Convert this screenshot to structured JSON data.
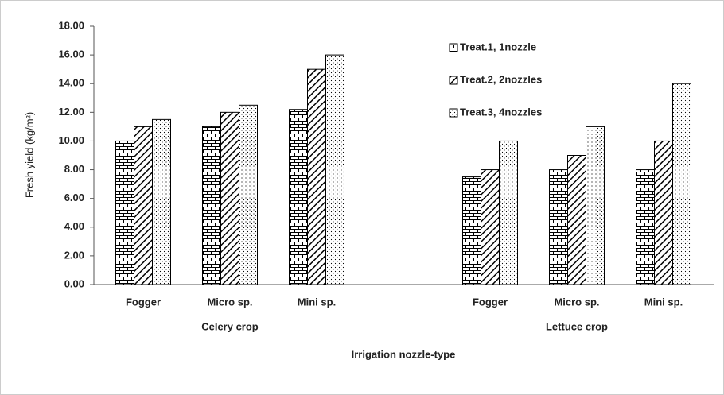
{
  "chart_data": {
    "type": "bar",
    "y_label": "Fresh yield (kg/m²)",
    "x_label": "Irrigation nozzle-type",
    "categories": [
      "Fogger",
      "Micro sp.",
      "Mini sp.",
      null,
      "Fogger",
      "Micro sp.",
      "Mini sp."
    ],
    "groups": [
      "Celery crop",
      "Lettuce crop"
    ],
    "series": [
      {
        "name": "Treat.1, 1nozzle",
        "color": "#000000",
        "pattern": "brick",
        "values": [
          10,
          11,
          12.2,
          null,
          7.5,
          8,
          8
        ]
      },
      {
        "name": "Treat.2, 2nozzles",
        "color": "#000000",
        "pattern": "diagonal",
        "values": [
          11,
          12,
          15,
          null,
          8,
          9,
          10
        ]
      },
      {
        "name": "Treat.3, 4nozzles",
        "color": "#000000",
        "pattern": "dots",
        "values": [
          11.5,
          12.5,
          16,
          null,
          10,
          11,
          14
        ]
      }
    ],
    "ylim": [
      0,
      18
    ],
    "yticks": [
      {
        "value": 0,
        "label": "0.00"
      },
      {
        "value": 2,
        "label": "2.00"
      },
      {
        "value": 4,
        "label": "4.00"
      },
      {
        "value": 6,
        "label": "6.00"
      },
      {
        "value": 8,
        "label": "8.00"
      },
      {
        "value": 10,
        "label": "10.00"
      },
      {
        "value": 12,
        "label": "12.00"
      },
      {
        "value": 14,
        "label": "14.00"
      },
      {
        "value": 16,
        "label": "16.00"
      },
      {
        "value": 18,
        "label": "18.00"
      }
    ],
    "grid": false,
    "legend": "upper right"
  }
}
